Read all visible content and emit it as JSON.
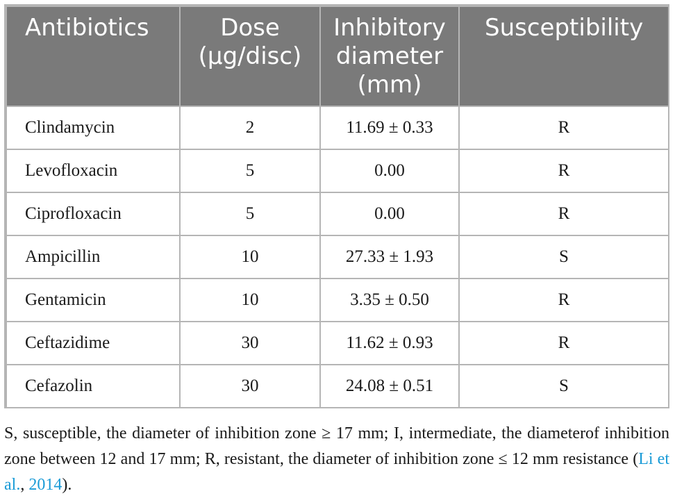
{
  "table": {
    "headers": {
      "antibiotics": "Antibiotics",
      "dose_line1": "Dose",
      "dose_line2": "(μg/disc)",
      "inhibitory_line1": "Inhibitory",
      "inhibitory_line2": "diameter",
      "inhibitory_line3": "(mm)",
      "susceptibility": "Susceptibility"
    },
    "rows": [
      {
        "antibiotic": "Clindamycin",
        "dose": "2",
        "diameter": "11.69 ± 0.33",
        "susceptibility": "R"
      },
      {
        "antibiotic": "Levofloxacin",
        "dose": "5",
        "diameter": "0.00",
        "susceptibility": "R"
      },
      {
        "antibiotic": "Ciprofloxacin",
        "dose": "5",
        "diameter": "0.00",
        "susceptibility": "R"
      },
      {
        "antibiotic": "Ampicillin",
        "dose": "10",
        "diameter": "27.33 ± 1.93",
        "susceptibility": "S"
      },
      {
        "antibiotic": "Gentamicin",
        "dose": "10",
        "diameter": "3.35 ± 0.50",
        "susceptibility": "R"
      },
      {
        "antibiotic": "Ceftazidime",
        "dose": "30",
        "diameter": "11.62 ± 0.93",
        "susceptibility": "R"
      },
      {
        "antibiotic": "Cefazolin",
        "dose": "30",
        "diameter": "24.08 ± 0.51",
        "susceptibility": "S"
      }
    ]
  },
  "footnote": {
    "text": "S, susceptible, the diameter of inhibition zone ≥ 17 mm; I, intermediate, the diameterof inhibition zone between 12 and 17 mm; R, resistant, the diameter of inhibition zone ≤ 12 mm resistance (",
    "cite_author": "Li et al.",
    "cite_sep": ", ",
    "cite_year": "2014",
    "text_end": ")."
  },
  "colors": {
    "header_background": "#7a7a7a",
    "header_text": "#ffffff",
    "border": "#b5b5b5",
    "citation_link": "#1a9bd7"
  }
}
